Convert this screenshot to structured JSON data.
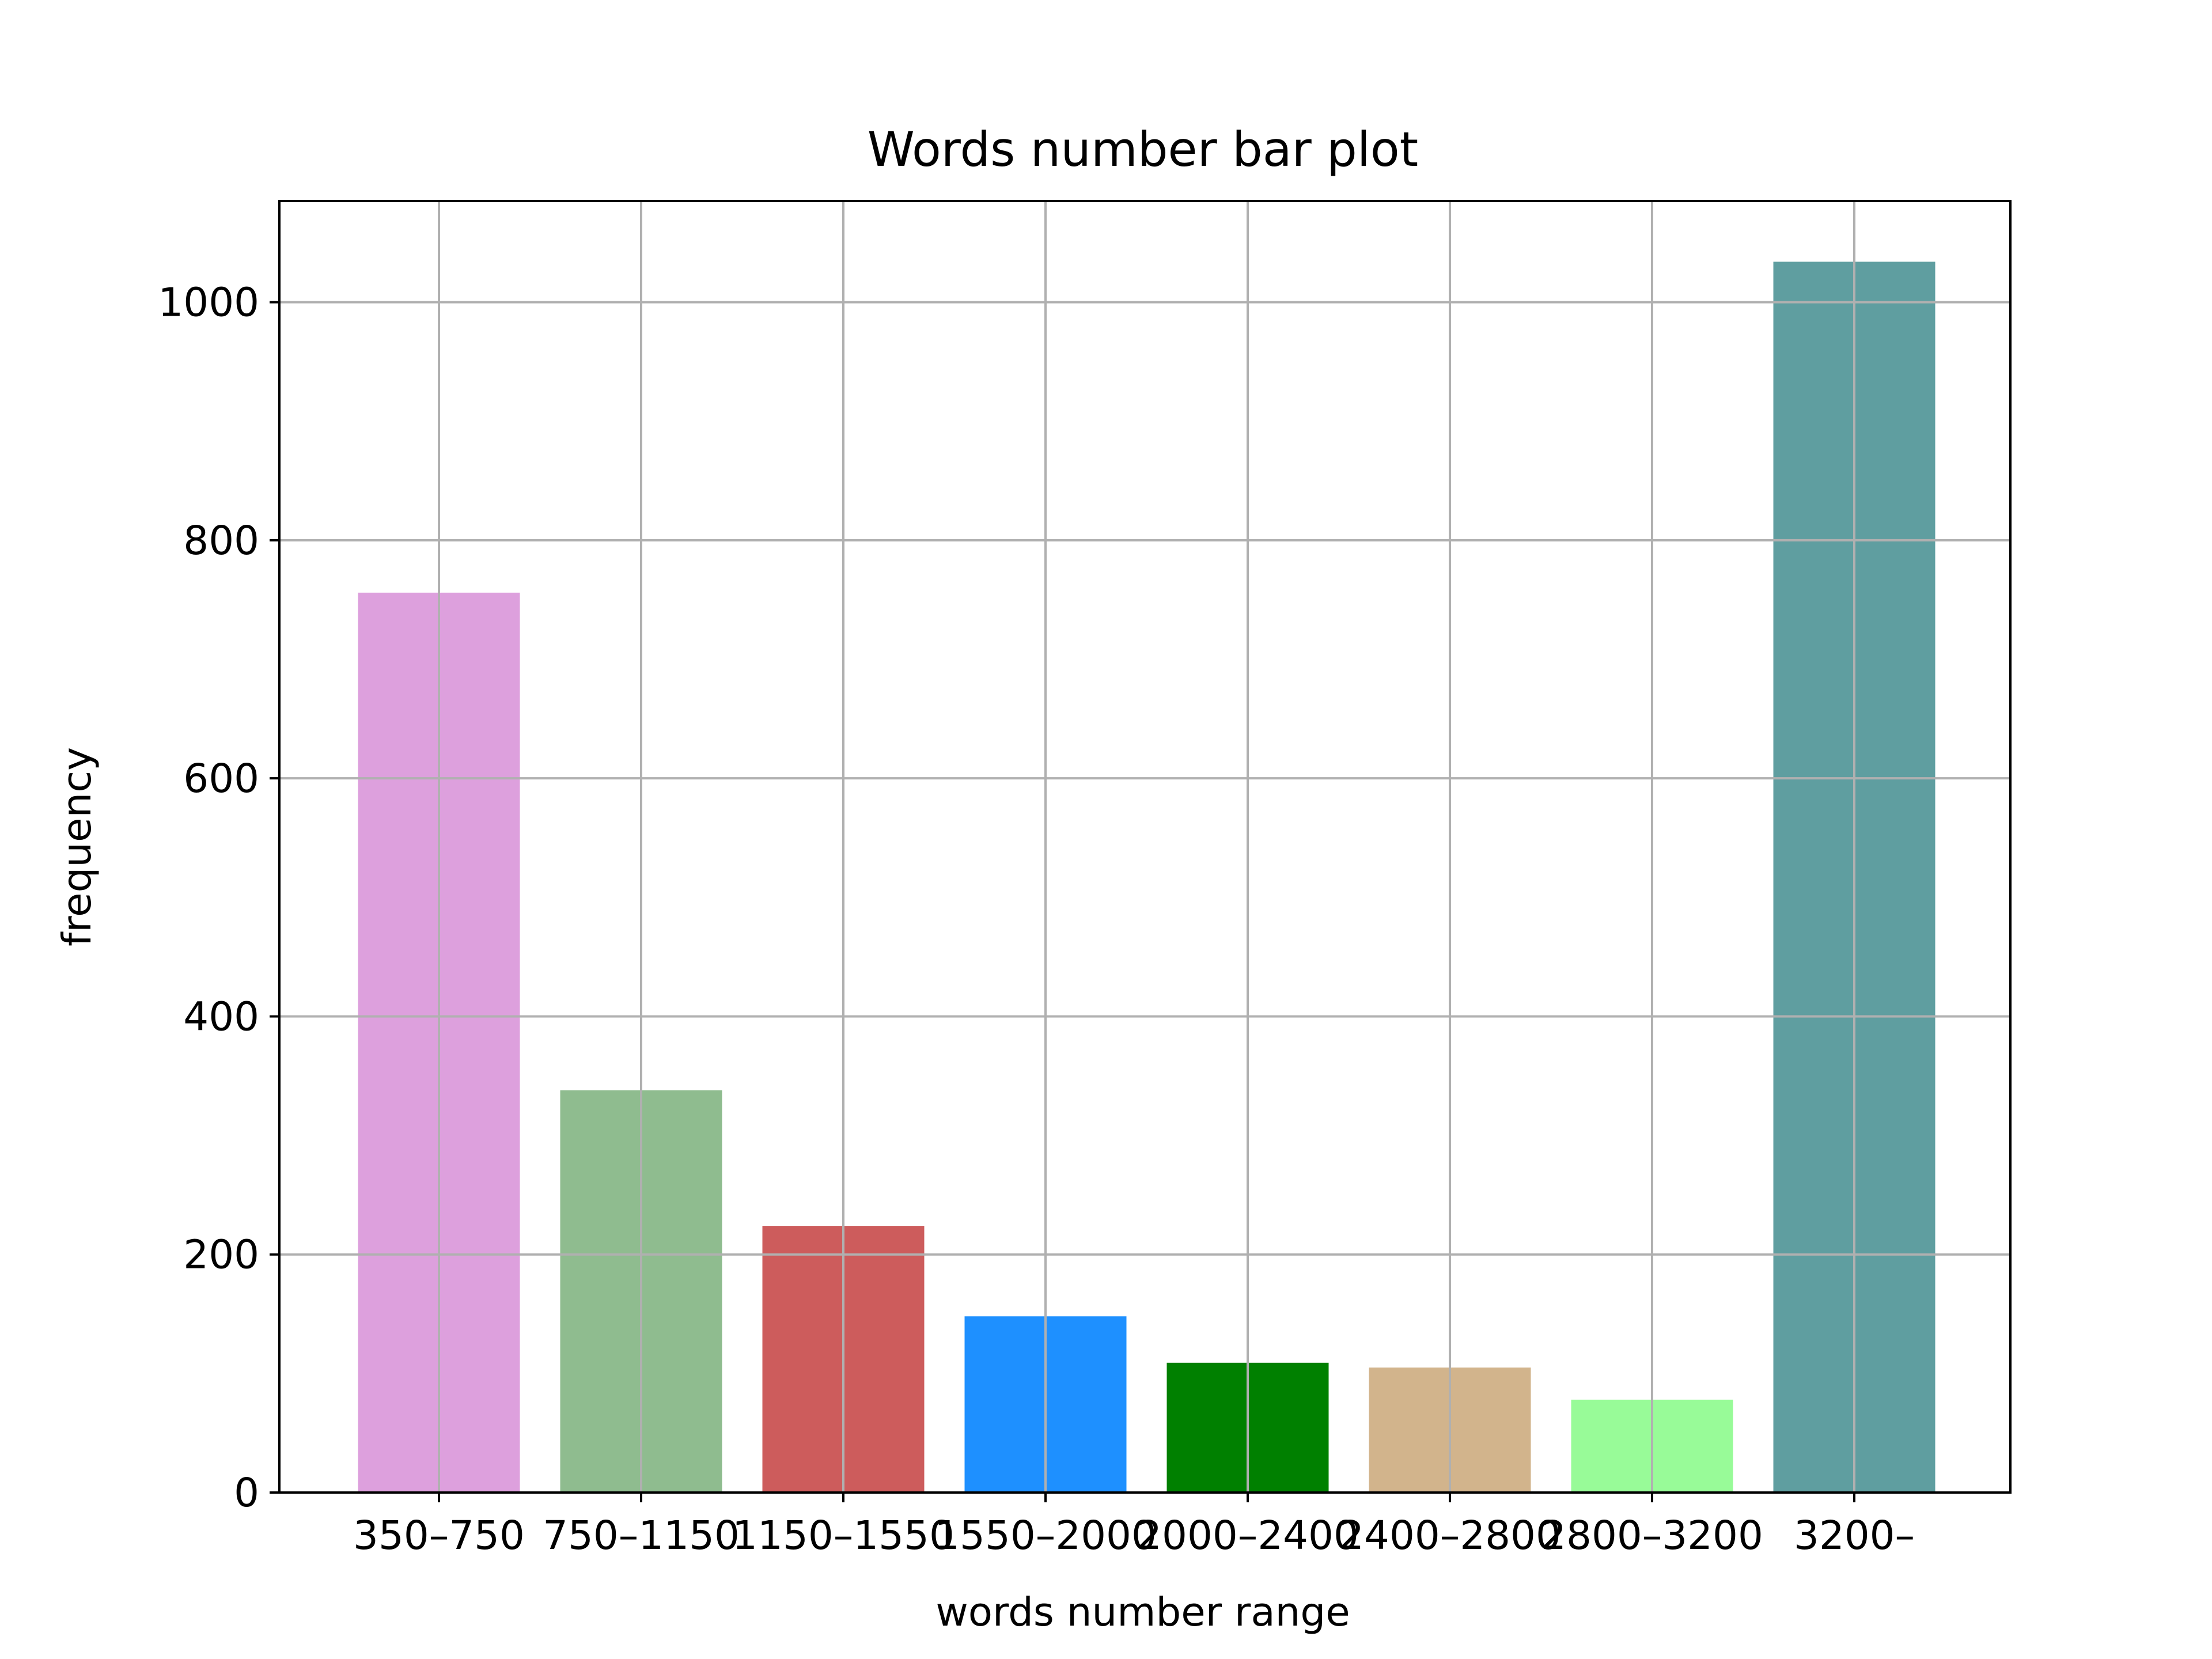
{
  "chart_data": {
    "type": "bar",
    "title": "Words number bar plot",
    "xlabel": "words number range",
    "ylabel": "frequency",
    "categories": [
      "350–750",
      "750–1150",
      "1150–1550",
      "1550–2000",
      "2000–2400",
      "2400–2800",
      "2800–3200",
      "3200–"
    ],
    "values": [
      756,
      338,
      224,
      148,
      109,
      105,
      78,
      1034
    ],
    "colors": [
      "#dda0dd",
      "#8fbc8f",
      "#cd5c5c",
      "#1e90ff",
      "#008000",
      "#d2b48c",
      "#98fb98",
      "#5f9ea0"
    ],
    "yticks": [
      0,
      200,
      400,
      600,
      800,
      1000
    ],
    "ylim": [
      0,
      1085
    ],
    "grid": true
  }
}
